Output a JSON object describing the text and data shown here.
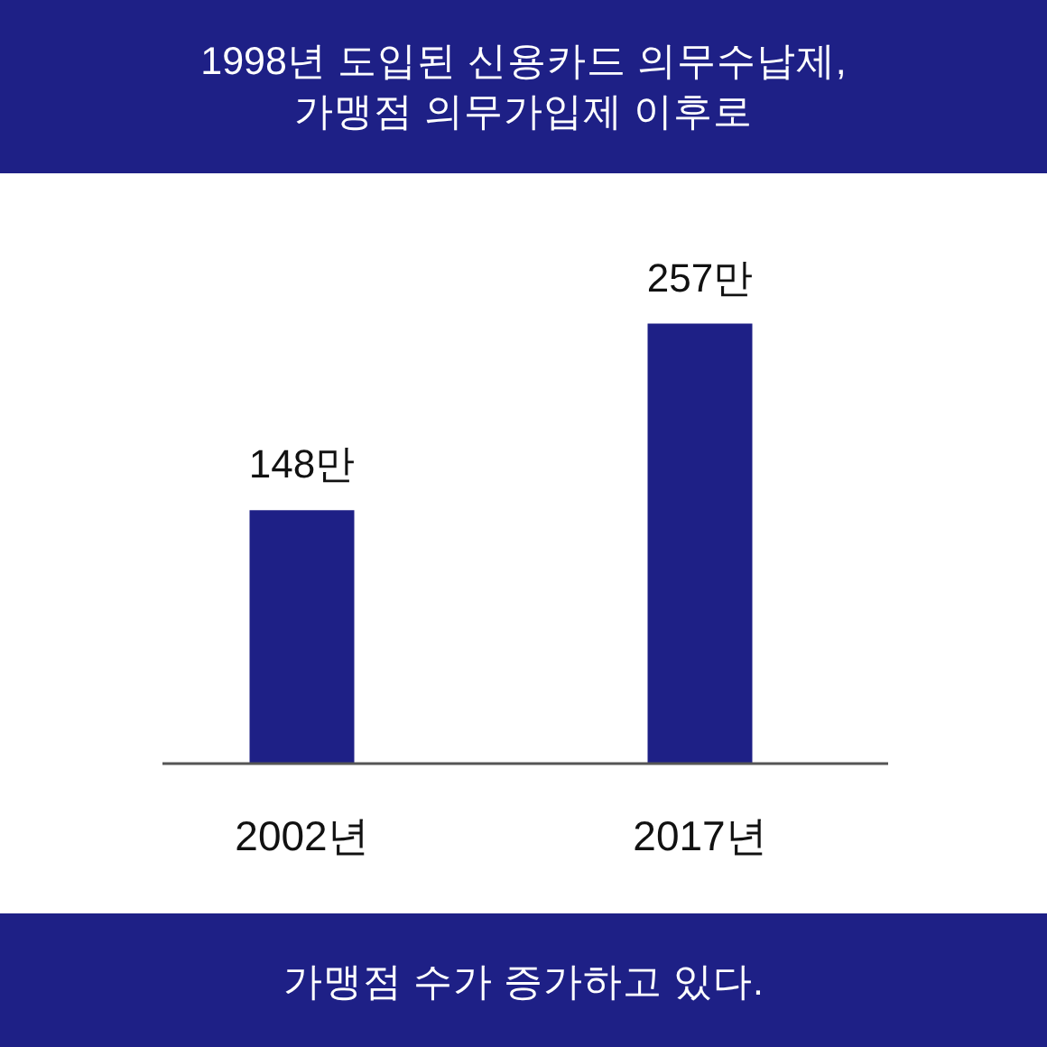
{
  "chart_data": {
    "type": "bar",
    "title": "1998년 도입된 신용카드 의무수납제,\n가맹점 의무가입제 이후로",
    "categories": [
      "2002년",
      "2017년"
    ],
    "values": [
      148,
      257
    ],
    "value_labels": [
      "148만",
      "257만"
    ],
    "color": "#1e2086",
    "annotations": [
      "가맹점 수가 증가하고 있다."
    ]
  }
}
